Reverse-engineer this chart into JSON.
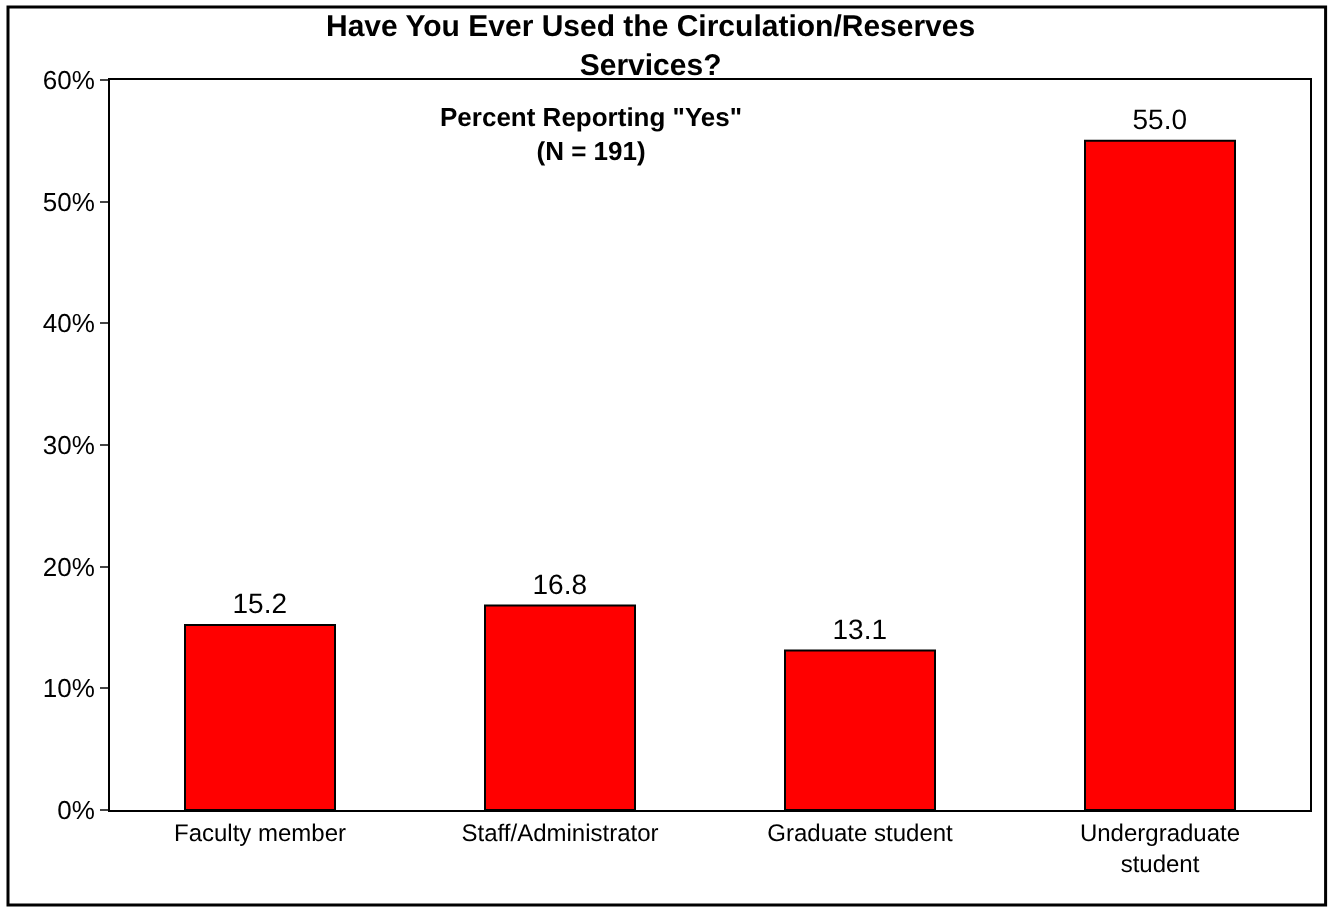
{
  "chart_data": {
    "type": "bar",
    "title": "Have You Ever Used the Circulation/Reserves\nServices?",
    "subtitle": "Percent Reporting \"Yes\"\n(N = 191)",
    "categories": [
      "Faculty member",
      "Staff/Administrator",
      "Graduate student",
      "Undergraduate\nstudent"
    ],
    "values": [
      15.2,
      16.8,
      13.1,
      55.0
    ],
    "value_labels": [
      "15.2",
      "16.8",
      "13.1",
      "55.0"
    ],
    "color": "#ff0000",
    "ylim": [
      0,
      60
    ],
    "yticks": [
      {
        "value": 0,
        "label": "0%"
      },
      {
        "value": 10,
        "label": "10%"
      },
      {
        "value": 20,
        "label": "20%"
      },
      {
        "value": 30,
        "label": "30%"
      },
      {
        "value": 40,
        "label": "40%"
      },
      {
        "value": 50,
        "label": "50%"
      },
      {
        "value": 60,
        "label": "60%"
      }
    ],
    "grid": false
  }
}
